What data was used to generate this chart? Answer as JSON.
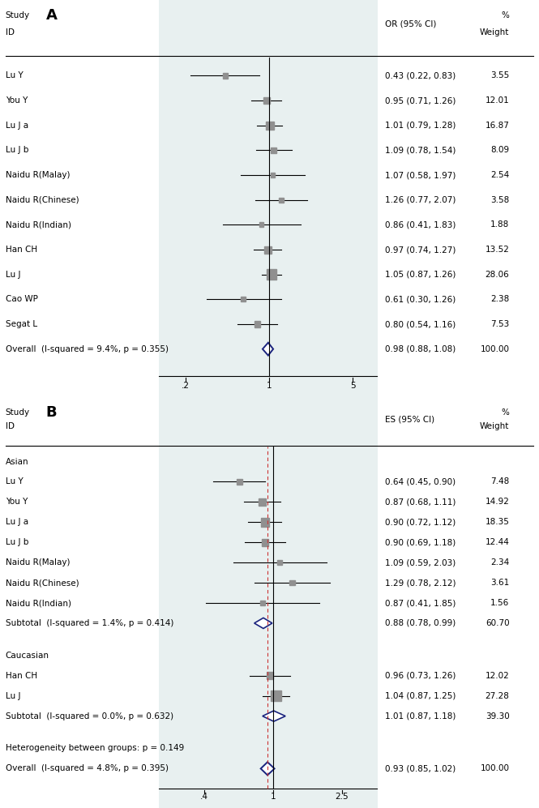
{
  "panel_A": {
    "title": "A",
    "col_header_right_1": "OR (95% CI)",
    "col_header_pct": "%",
    "col_header_weight": "Weight",
    "studies": [
      {
        "label": "Lu Y",
        "or": 0.43,
        "ci_lo": 0.22,
        "ci_hi": 0.83,
        "weight": 3.55,
        "weight_str": "3.55",
        "ci_str": "0.43 (0.22, 0.83)"
      },
      {
        "label": "You Y",
        "or": 0.95,
        "ci_lo": 0.71,
        "ci_hi": 1.26,
        "weight": 12.01,
        "weight_str": "12.01",
        "ci_str": "0.95 (0.71, 1.26)"
      },
      {
        "label": "Lu J a",
        "or": 1.01,
        "ci_lo": 0.79,
        "ci_hi": 1.28,
        "weight": 16.87,
        "weight_str": "16.87",
        "ci_str": "1.01 (0.79, 1.28)"
      },
      {
        "label": "Lu J b",
        "or": 1.09,
        "ci_lo": 0.78,
        "ci_hi": 1.54,
        "weight": 8.09,
        "weight_str": "8.09",
        "ci_str": "1.09 (0.78, 1.54)"
      },
      {
        "label": "Naidu R(Malay)",
        "or": 1.07,
        "ci_lo": 0.58,
        "ci_hi": 1.97,
        "weight": 2.54,
        "weight_str": "2.54",
        "ci_str": "1.07 (0.58, 1.97)"
      },
      {
        "label": "Naidu R(Chinese)",
        "or": 1.26,
        "ci_lo": 0.77,
        "ci_hi": 2.07,
        "weight": 3.58,
        "weight_str": "3.58",
        "ci_str": "1.26 (0.77, 2.07)"
      },
      {
        "label": "Naidu R(Indian)",
        "or": 0.86,
        "ci_lo": 0.41,
        "ci_hi": 1.83,
        "weight": 1.88,
        "weight_str": "1.88",
        "ci_str": "0.86 (0.41, 1.83)"
      },
      {
        "label": "Han CH",
        "or": 0.97,
        "ci_lo": 0.74,
        "ci_hi": 1.27,
        "weight": 13.52,
        "weight_str": "13.52",
        "ci_str": "0.97 (0.74, 1.27)"
      },
      {
        "label": "Lu J",
        "or": 1.05,
        "ci_lo": 0.87,
        "ci_hi": 1.26,
        "weight": 28.06,
        "weight_str": "28.06",
        "ci_str": "1.05 (0.87, 1.26)"
      },
      {
        "label": "Cao WP",
        "or": 0.61,
        "ci_lo": 0.3,
        "ci_hi": 1.26,
        "weight": 2.38,
        "weight_str": "2.38",
        "ci_str": "0.61 (0.30, 1.26)"
      },
      {
        "label": "Segat L",
        "or": 0.8,
        "ci_lo": 0.54,
        "ci_hi": 1.16,
        "weight": 7.53,
        "weight_str": "7.53",
        "ci_str": "0.80 (0.54, 1.16)"
      }
    ],
    "overall": {
      "label": "Overall  (I-squared = 9.4%, p = 0.355)",
      "or": 0.98,
      "ci_lo": 0.88,
      "ci_hi": 1.08,
      "weight_str": "100.00",
      "ci_str": "0.98 (0.88, 1.08)"
    },
    "xticks": [
      0.2,
      1.0,
      5.0
    ],
    "xticklabels": [
      ".2",
      "1",
      "5"
    ],
    "xlim_lo": 0.12,
    "xlim_hi": 8.0,
    "ref_line": 1.0,
    "bg_color": "#e8f0f0"
  },
  "panel_B": {
    "title": "B",
    "col_header_right_1": "ES (95% CI)",
    "col_header_pct": "%",
    "col_header_weight": "Weight",
    "groups": [
      {
        "name": "Asian",
        "studies": [
          {
            "label": "Lu Y",
            "or": 0.64,
            "ci_lo": 0.45,
            "ci_hi": 0.9,
            "weight": 7.48,
            "weight_str": "7.48",
            "ci_str": "0.64 (0.45, 0.90)"
          },
          {
            "label": "You Y",
            "or": 0.87,
            "ci_lo": 0.68,
            "ci_hi": 1.11,
            "weight": 14.92,
            "weight_str": "14.92",
            "ci_str": "0.87 (0.68, 1.11)"
          },
          {
            "label": "Lu J a",
            "or": 0.9,
            "ci_lo": 0.72,
            "ci_hi": 1.12,
            "weight": 18.35,
            "weight_str": "18.35",
            "ci_str": "0.90 (0.72, 1.12)"
          },
          {
            "label": "Lu J b",
            "or": 0.9,
            "ci_lo": 0.69,
            "ci_hi": 1.18,
            "weight": 12.44,
            "weight_str": "12.44",
            "ci_str": "0.90 (0.69, 1.18)"
          },
          {
            "label": "Naidu R(Malay)",
            "or": 1.09,
            "ci_lo": 0.59,
            "ci_hi": 2.03,
            "weight": 2.34,
            "weight_str": "2.34",
            "ci_str": "1.09 (0.59, 2.03)"
          },
          {
            "label": "Naidu R(Chinese)",
            "or": 1.29,
            "ci_lo": 0.78,
            "ci_hi": 2.12,
            "weight": 3.61,
            "weight_str": "3.61",
            "ci_str": "1.29 (0.78, 2.12)"
          },
          {
            "label": "Naidu R(Indian)",
            "or": 0.87,
            "ci_lo": 0.41,
            "ci_hi": 1.85,
            "weight": 1.56,
            "weight_str": "1.56",
            "ci_str": "0.87 (0.41, 1.85)"
          }
        ],
        "subtotal": {
          "label": "Subtotal  (I-squared = 1.4%, p = 0.414)",
          "or": 0.88,
          "ci_lo": 0.78,
          "ci_hi": 0.99,
          "weight_str": "60.70",
          "ci_str": "0.88 (0.78, 0.99)"
        }
      },
      {
        "name": "Caucasian",
        "studies": [
          {
            "label": "Han CH",
            "or": 0.96,
            "ci_lo": 0.73,
            "ci_hi": 1.26,
            "weight": 12.02,
            "weight_str": "12.02",
            "ci_str": "0.96 (0.73, 1.26)"
          },
          {
            "label": "Lu J",
            "or": 1.04,
            "ci_lo": 0.87,
            "ci_hi": 1.25,
            "weight": 27.28,
            "weight_str": "27.28",
            "ci_str": "1.04 (0.87, 1.25)"
          }
        ],
        "subtotal": {
          "label": "Subtotal  (I-squared = 0.0%, p = 0.632)",
          "or": 1.01,
          "ci_lo": 0.87,
          "ci_hi": 1.18,
          "weight_str": "39.30",
          "ci_str": "1.01 (0.87, 1.18)"
        }
      }
    ],
    "heterogeneity_label": "Heterogeneity between groups: p = 0.149",
    "overall": {
      "label": "Overall  (I-squared = 4.8%, p = 0.395)",
      "or": 0.93,
      "ci_lo": 0.85,
      "ci_hi": 1.02,
      "weight_str": "100.00",
      "ci_str": "0.93 (0.85, 1.02)"
    },
    "xticks": [
      0.4,
      1.0,
      2.5
    ],
    "xticklabels": [
      ".4",
      "1",
      "2.5"
    ],
    "xlim_lo": 0.22,
    "xlim_hi": 4.0,
    "ref_line_solid": 1.0,
    "ref_line_dashed": 0.93,
    "bg_color": "#e8f0f0"
  },
  "diamond_color": "#1a237e",
  "box_color": "#909090",
  "font_size": 7.5,
  "title_font_size": 13
}
